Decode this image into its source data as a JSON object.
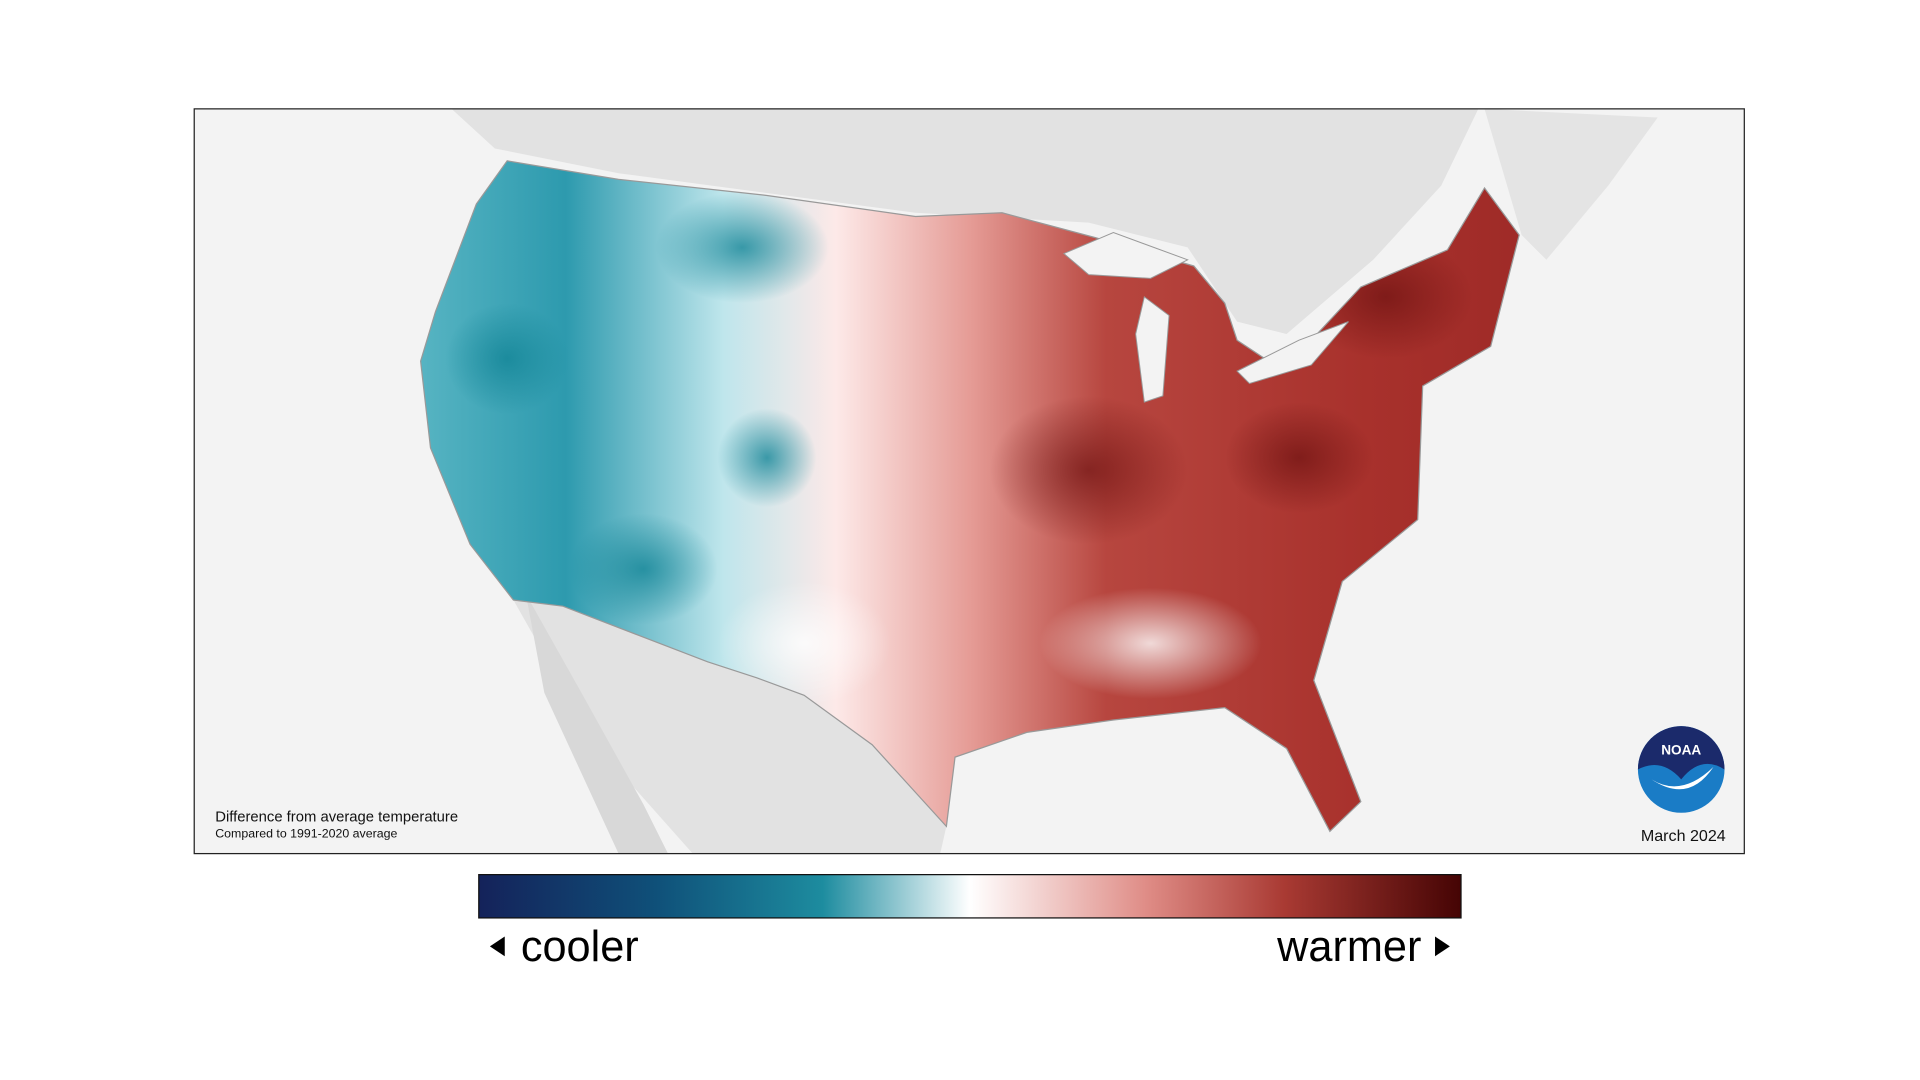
{
  "caption": {
    "title": "Difference from average temperature",
    "subtitle": "Compared to 1991-2020 average"
  },
  "date": "March 2024",
  "logo": "NOAA",
  "legend": {
    "low": "cooler",
    "high": "warmer"
  }
}
